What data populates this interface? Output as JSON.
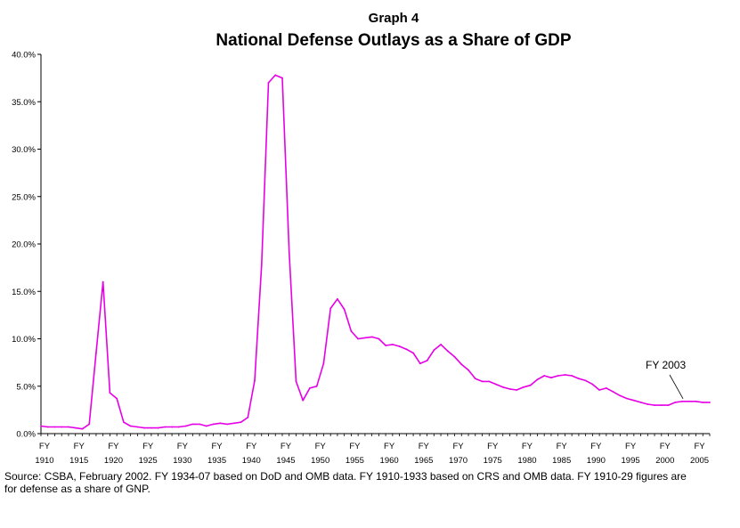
{
  "chart_data": {
    "type": "line",
    "supertitle": "Graph 4",
    "title": "National Defense Outlays as a Share of GDP",
    "xlabel": "",
    "ylabel": "",
    "ylim": [
      0,
      40
    ],
    "xlim": [
      1910,
      2007
    ],
    "y_ticks": [
      "0.0%",
      "5.0%",
      "10.0%",
      "15.0%",
      "20.0%",
      "25.0%",
      "30.0%",
      "35.0%",
      "40.0%"
    ],
    "x_tick_years": [
      "1910",
      "1915",
      "1920",
      "1925",
      "1930",
      "1935",
      "1940",
      "1945",
      "1950",
      "1955",
      "1960",
      "1965",
      "1970",
      "1975",
      "1980",
      "1985",
      "1990",
      "1995",
      "2000",
      "2005"
    ],
    "x_tick_prefix": "FY",
    "line_color": "#e600e6",
    "grid": false,
    "legend": "none",
    "annotation": {
      "text": "FY 2003",
      "x": 2003,
      "y": 3.4
    },
    "series": [
      {
        "x": [
          1910,
          1911,
          1912,
          1913,
          1914,
          1915,
          1916,
          1917,
          1918,
          1919,
          1920,
          1921,
          1922,
          1923,
          1924,
          1925,
          1926,
          1927,
          1928,
          1929,
          1930,
          1931,
          1932,
          1933,
          1934,
          1935,
          1936,
          1937,
          1938,
          1939,
          1940,
          1941,
          1942,
          1943,
          1944,
          1945,
          1946,
          1947,
          1948,
          1949,
          1950,
          1951,
          1952,
          1953,
          1954,
          1955,
          1956,
          1957,
          1958,
          1959,
          1960,
          1961,
          1962,
          1963,
          1964,
          1965,
          1966,
          1967,
          1968,
          1969,
          1970,
          1971,
          1972,
          1973,
          1974,
          1975,
          1976,
          1977,
          1978,
          1979,
          1980,
          1981,
          1982,
          1983,
          1984,
          1985,
          1986,
          1987,
          1988,
          1989,
          1990,
          1991,
          1992,
          1993,
          1994,
          1995,
          1996,
          1997,
          1998,
          1999,
          2000,
          2001,
          2002,
          2003,
          2004,
          2005,
          2006,
          2007
        ],
        "values": [
          0.8,
          0.7,
          0.7,
          0.7,
          0.7,
          0.6,
          0.5,
          1.0,
          8.5,
          16.0,
          4.3,
          3.7,
          1.2,
          0.8,
          0.7,
          0.6,
          0.6,
          0.6,
          0.7,
          0.7,
          0.7,
          0.8,
          1.0,
          1.0,
          0.8,
          1.0,
          1.1,
          1.0,
          1.1,
          1.2,
          1.7,
          5.6,
          17.8,
          37.0,
          37.8,
          37.5,
          19.2,
          5.5,
          3.5,
          4.8,
          5.0,
          7.4,
          13.2,
          14.2,
          13.1,
          10.8,
          10.0,
          10.1,
          10.2,
          10.0,
          9.3,
          9.4,
          9.2,
          8.9,
          8.5,
          7.4,
          7.7,
          8.8,
          9.4,
          8.7,
          8.1,
          7.3,
          6.7,
          5.8,
          5.5,
          5.5,
          5.2,
          4.9,
          4.7,
          4.6,
          4.9,
          5.1,
          5.7,
          6.1,
          5.9,
          6.1,
          6.2,
          6.1,
          5.8,
          5.6,
          5.2,
          4.6,
          4.8,
          4.4,
          4.0,
          3.7,
          3.5,
          3.3,
          3.1,
          3.0,
          3.0,
          3.0,
          3.3,
          3.4,
          3.4,
          3.4,
          3.3,
          3.3
        ]
      }
    ]
  },
  "source_note": {
    "line1": "Source: CSBA, February 2002. FY 1934-07 based on DoD and OMB data. FY 1910-1933 based on CRS and OMB data. FY 1910-29 figures are",
    "line2": "for defense as a share of GNP."
  }
}
